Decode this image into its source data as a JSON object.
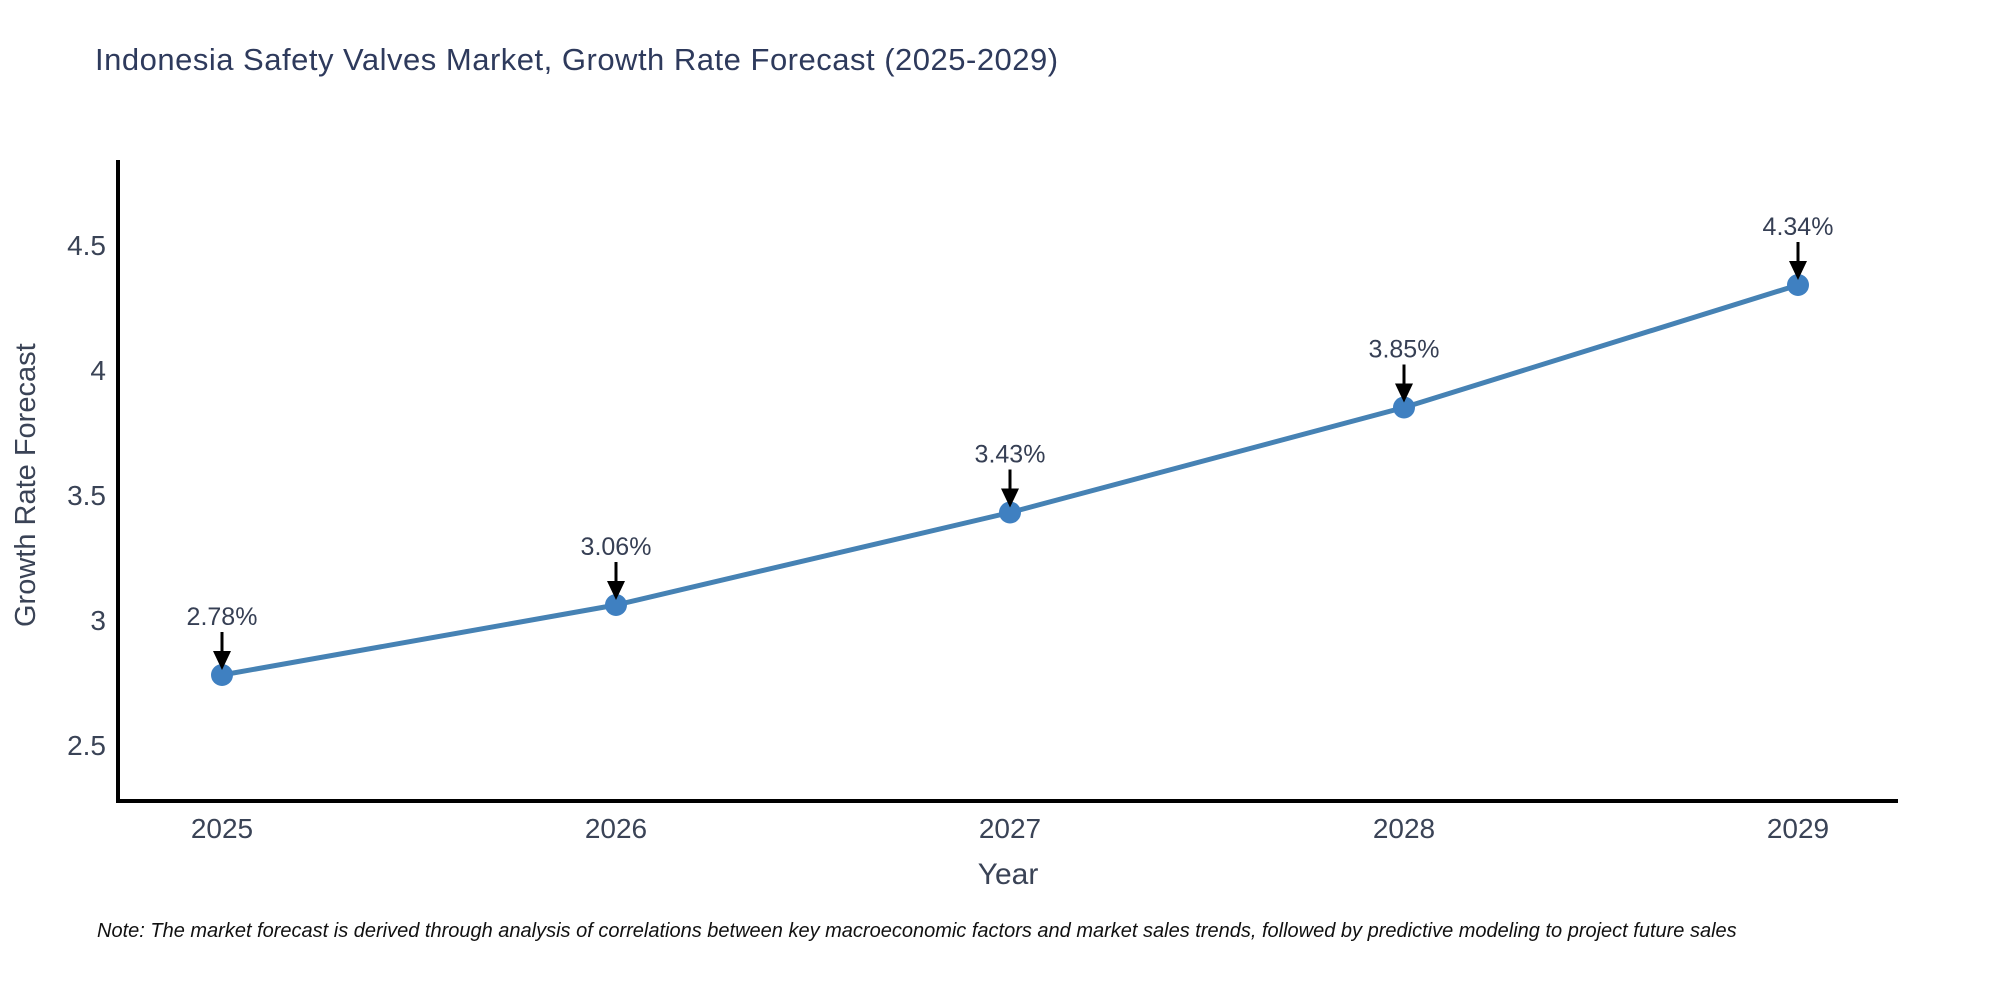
{
  "title": "Indonesia Safety Valves Market, Growth Rate Forecast (2025-2029)",
  "note": "Note: The market forecast is derived through analysis of correlations between key macroeconomic factors and market sales trends, followed by predictive modeling to project future sales",
  "chart_data": {
    "type": "line",
    "title": "Indonesia Safety Valves Market, Growth Rate Forecast (2025-2029)",
    "xlabel": "Year",
    "ylabel": "Growth Rate Forecast",
    "x": [
      2025,
      2026,
      2027,
      2028,
      2029
    ],
    "xtick_labels": [
      "2025",
      "2026",
      "2027",
      "2028",
      "2029"
    ],
    "values": [
      2.78,
      3.06,
      3.43,
      3.85,
      4.34
    ],
    "point_labels": [
      "2.78%",
      "3.06%",
      "3.43%",
      "3.85%",
      "4.34%"
    ],
    "yticks": [
      2.5,
      3,
      3.5,
      4,
      4.5
    ],
    "ytick_labels": [
      "2.5",
      "3",
      "3.5",
      "4",
      "4.5"
    ],
    "ylim": [
      2.28,
      4.84
    ],
    "grid": false,
    "legend": false
  },
  "colors": {
    "line": "#4682b4",
    "marker": "#3f80c1",
    "arrow": "#000000",
    "spine": "#000000",
    "title_text": "#2e3a5c",
    "axis_text": "#3a4356",
    "annotation_text": "#363f54",
    "note_text": "#111111",
    "background": "#ffffff"
  }
}
